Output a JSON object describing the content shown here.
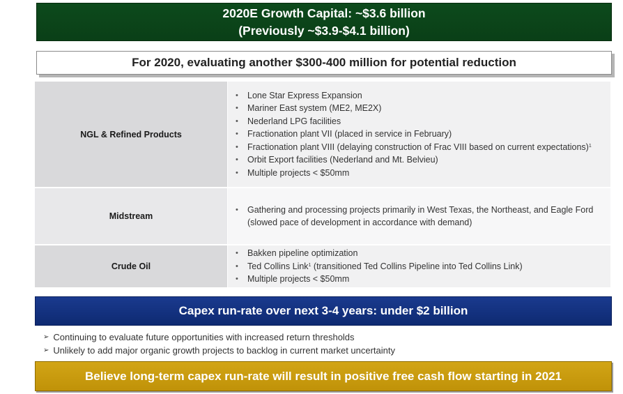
{
  "top_banner": {
    "line1": "2020E Growth Capital: ~$3.6 billion",
    "line2": "(Previously ~$3.9-$4.1 billion)"
  },
  "evaluation_banner": {
    "text": "For 2020, evaluating another $300-400 million for potential reduction"
  },
  "segments": {
    "ngl": {
      "label": "NGL & Refined Products",
      "items": [
        "Lone Star Express Expansion",
        "Mariner East system (ME2, ME2X)",
        "Nederland LPG facilities",
        "Fractionation plant VII (placed in service in February)",
        "Fractionation plant VIII (delaying construction of Frac VIII based on current expectations)",
        "Orbit Export facilities (Nederland and Mt. Belvieu)",
        "Multiple projects < $50mm"
      ],
      "footnote_mark": "1"
    },
    "midstream": {
      "label": "Midstream",
      "items": [
        "Gathering and processing projects primarily in West Texas, the Northeast, and Eagle Ford (slowed pace of development in accordance with demand)"
      ]
    },
    "crude": {
      "label": "Crude Oil",
      "items": [
        "Bakken pipeline optimization",
        "Multiple projects < $50mm"
      ],
      "ted_item": {
        "prefix": "Ted Collins Link",
        "mark": "1",
        "suffix": " (transitioned Ted Collins Pipeline into Ted Collins Link)"
      }
    }
  },
  "capex_banner": {
    "text": "Capex run-rate over next 3-4 years: under $2 billion"
  },
  "arrow_points": {
    "symbol": "➢",
    "items": [
      "Continuing to evaluate future opportunities with increased return thresholds",
      "Unlikely to add major organic growth projects to backlog in current market uncertainty"
    ]
  },
  "fcf_banner": {
    "text": "Believe long-term capex run-rate will result in positive free cash flow starting in 2021"
  },
  "colors": {
    "green_banner": "#0d4a1c",
    "blue_banner": "#1a3a8e",
    "gold_banner": "#d2a516",
    "table_label_bg": "#d9d9db",
    "table_items_bg": "#f1f1f2"
  }
}
